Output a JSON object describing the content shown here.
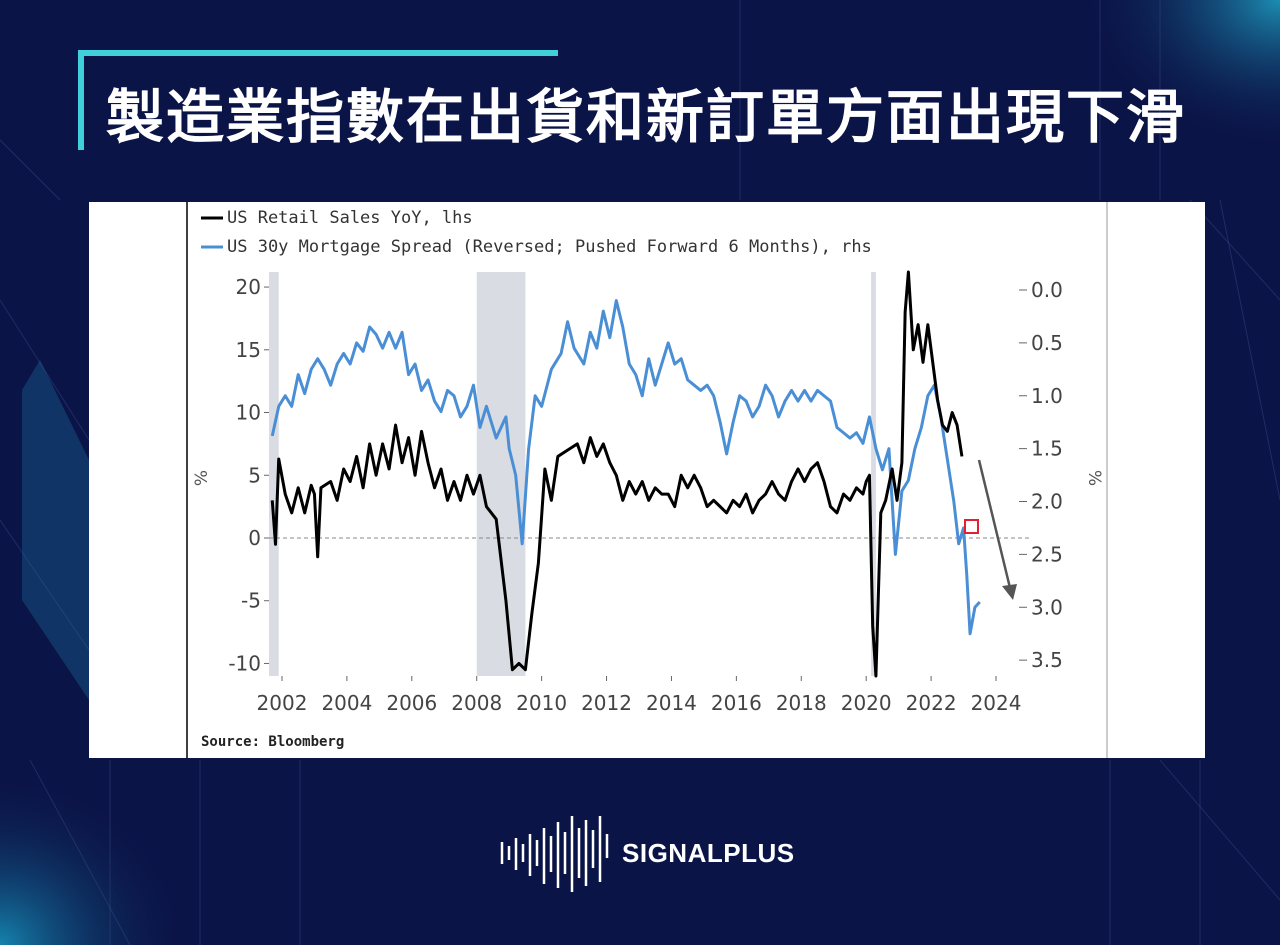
{
  "slide": {
    "title": "製造業指數在出貨和新訂單方面出現下滑",
    "brand": "SIGNALPLUS",
    "colors": {
      "background": "#0b1447",
      "accent": "#3fd0dc"
    }
  },
  "chart_data": {
    "type": "line",
    "legend": [
      {
        "label": "US Retail Sales YoY, lhs",
        "color": "#000000"
      },
      {
        "label": "US 30y Mortgage Spread (Reversed; Pushed Forward 6 Months), rhs",
        "color": "#4a8fd6"
      }
    ],
    "source": "Source: Bloomberg",
    "ylabel_left": "%",
    "ylabel_right": "%",
    "x_ticks": [
      "2002",
      "2004",
      "2006",
      "2008",
      "2010",
      "2012",
      "2014",
      "2016",
      "2018",
      "2020",
      "2022",
      "2024"
    ],
    "y_left_ticks": [
      "20",
      "15",
      "10",
      "5",
      "0",
      "-5",
      "-10"
    ],
    "y_right_ticks": [
      "0.0",
      "0.5",
      "1.0",
      "1.5",
      "2.0",
      "2.5",
      "3.0",
      "3.5"
    ],
    "xlim": [
      2001.6,
      2024.4
    ],
    "ylim_left": [
      -11,
      21.2
    ],
    "ylim_right_reversed": [
      0,
      3.65
    ],
    "zero_line": "dashed",
    "recession_shading": [
      [
        2008.0,
        2009.5
      ],
      [
        2001.6,
        2001.9
      ],
      [
        2020.15,
        2020.3
      ]
    ],
    "annotations": [
      "red square marker near 2023 on spread series",
      "gray arrow pointing downward"
    ],
    "series": [
      {
        "name": "US Retail Sales YoY",
        "axis": "left",
        "color": "#000000",
        "points": [
          [
            2001.7,
            3
          ],
          [
            2001.8,
            -0.5
          ],
          [
            2001.9,
            6.3
          ],
          [
            2002.1,
            3.5
          ],
          [
            2002.3,
            2
          ],
          [
            2002.5,
            4
          ],
          [
            2002.7,
            2
          ],
          [
            2002.9,
            4.2
          ],
          [
            2003.0,
            3.5
          ],
          [
            2003.1,
            -1.5
          ],
          [
            2003.2,
            4
          ],
          [
            2003.5,
            4.5
          ],
          [
            2003.7,
            3
          ],
          [
            2003.9,
            5.5
          ],
          [
            2004.1,
            4.5
          ],
          [
            2004.3,
            6.5
          ],
          [
            2004.5,
            4
          ],
          [
            2004.7,
            7.5
          ],
          [
            2004.9,
            5
          ],
          [
            2005.1,
            7.5
          ],
          [
            2005.3,
            5.5
          ],
          [
            2005.5,
            9
          ],
          [
            2005.7,
            6
          ],
          [
            2005.9,
            8
          ],
          [
            2006.1,
            5
          ],
          [
            2006.3,
            8.5
          ],
          [
            2006.5,
            6
          ],
          [
            2006.7,
            4
          ],
          [
            2006.9,
            5.5
          ],
          [
            2007.1,
            3
          ],
          [
            2007.3,
            4.5
          ],
          [
            2007.5,
            3
          ],
          [
            2007.7,
            5
          ],
          [
            2007.9,
            3.5
          ],
          [
            2008.1,
            5
          ],
          [
            2008.3,
            2.5
          ],
          [
            2008.6,
            1.5
          ],
          [
            2008.9,
            -5
          ],
          [
            2009.1,
            -10.5
          ],
          [
            2009.3,
            -10
          ],
          [
            2009.5,
            -10.5
          ],
          [
            2009.7,
            -6
          ],
          [
            2009.9,
            -2
          ],
          [
            2010.1,
            5.5
          ],
          [
            2010.3,
            3
          ],
          [
            2010.5,
            6.5
          ],
          [
            2010.8,
            7
          ],
          [
            2011.1,
            7.5
          ],
          [
            2011.3,
            6
          ],
          [
            2011.5,
            8
          ],
          [
            2011.7,
            6.5
          ],
          [
            2011.9,
            7.5
          ],
          [
            2012.1,
            6
          ],
          [
            2012.3,
            5
          ],
          [
            2012.5,
            3
          ],
          [
            2012.7,
            4.5
          ],
          [
            2012.9,
            3.5
          ],
          [
            2013.1,
            4.5
          ],
          [
            2013.3,
            3
          ],
          [
            2013.5,
            4
          ],
          [
            2013.7,
            3.5
          ],
          [
            2013.9,
            3.5
          ],
          [
            2014.1,
            2.5
          ],
          [
            2014.3,
            5
          ],
          [
            2014.5,
            4
          ],
          [
            2014.7,
            5
          ],
          [
            2014.9,
            4
          ],
          [
            2015.1,
            2.5
          ],
          [
            2015.3,
            3
          ],
          [
            2015.5,
            2.5
          ],
          [
            2015.7,
            2
          ],
          [
            2015.9,
            3
          ],
          [
            2016.1,
            2.5
          ],
          [
            2016.3,
            3.5
          ],
          [
            2016.5,
            2
          ],
          [
            2016.7,
            3
          ],
          [
            2016.9,
            3.5
          ],
          [
            2017.1,
            4.5
          ],
          [
            2017.3,
            3.5
          ],
          [
            2017.5,
            3
          ],
          [
            2017.7,
            4.5
          ],
          [
            2017.9,
            5.5
          ],
          [
            2018.1,
            4.5
          ],
          [
            2018.3,
            5.5
          ],
          [
            2018.5,
            6
          ],
          [
            2018.7,
            4.5
          ],
          [
            2018.9,
            2.5
          ],
          [
            2019.1,
            2
          ],
          [
            2019.3,
            3.5
          ],
          [
            2019.5,
            3
          ],
          [
            2019.7,
            4
          ],
          [
            2019.9,
            3.5
          ],
          [
            2020.0,
            4.5
          ],
          [
            2020.1,
            5
          ],
          [
            2020.2,
            -7
          ],
          [
            2020.3,
            -11
          ],
          [
            2020.45,
            2
          ],
          [
            2020.6,
            3
          ],
          [
            2020.8,
            5.5
          ],
          [
            2020.95,
            3
          ],
          [
            2021.1,
            6
          ],
          [
            2021.2,
            18
          ],
          [
            2021.3,
            23
          ],
          [
            2021.45,
            15
          ],
          [
            2021.6,
            17
          ],
          [
            2021.75,
            14
          ],
          [
            2021.9,
            17
          ],
          [
            2022.05,
            14
          ],
          [
            2022.2,
            11
          ],
          [
            2022.35,
            9
          ],
          [
            2022.5,
            8.5
          ],
          [
            2022.65,
            10
          ],
          [
            2022.8,
            9
          ],
          [
            2022.95,
            6.5
          ]
        ]
      },
      {
        "name": "US 30y Mortgage Spread (Reversed; Pushed Forward 6 Months)",
        "axis": "right",
        "color": "#4a8fd6",
        "points": [
          [
            2001.7,
            1.38
          ],
          [
            2001.9,
            1.1
          ],
          [
            2002.1,
            1.0
          ],
          [
            2002.3,
            1.1
          ],
          [
            2002.5,
            0.8
          ],
          [
            2002.7,
            0.98
          ],
          [
            2002.9,
            0.75
          ],
          [
            2003.1,
            0.65
          ],
          [
            2003.3,
            0.75
          ],
          [
            2003.5,
            0.9
          ],
          [
            2003.7,
            0.7
          ],
          [
            2003.9,
            0.6
          ],
          [
            2004.1,
            0.7
          ],
          [
            2004.3,
            0.5
          ],
          [
            2004.5,
            0.58
          ],
          [
            2004.7,
            0.35
          ],
          [
            2004.9,
            0.42
          ],
          [
            2005.1,
            0.55
          ],
          [
            2005.3,
            0.4
          ],
          [
            2005.5,
            0.55
          ],
          [
            2005.7,
            0.4
          ],
          [
            2005.9,
            0.8
          ],
          [
            2006.1,
            0.7
          ],
          [
            2006.3,
            0.95
          ],
          [
            2006.5,
            0.85
          ],
          [
            2006.7,
            1.05
          ],
          [
            2006.9,
            1.15
          ],
          [
            2007.1,
            0.95
          ],
          [
            2007.3,
            1.0
          ],
          [
            2007.5,
            1.2
          ],
          [
            2007.7,
            1.1
          ],
          [
            2007.9,
            0.9
          ],
          [
            2008.1,
            1.3
          ],
          [
            2008.3,
            1.1
          ],
          [
            2008.6,
            1.4
          ],
          [
            2008.9,
            1.2
          ],
          [
            2009.0,
            1.5
          ],
          [
            2009.2,
            1.75
          ],
          [
            2009.4,
            2.4
          ],
          [
            2009.6,
            1.5
          ],
          [
            2009.8,
            1.0
          ],
          [
            2010.0,
            1.1
          ],
          [
            2010.3,
            0.75
          ],
          [
            2010.6,
            0.6
          ],
          [
            2010.8,
            0.3
          ],
          [
            2011.0,
            0.55
          ],
          [
            2011.3,
            0.7
          ],
          [
            2011.5,
            0.4
          ],
          [
            2011.7,
            0.55
          ],
          [
            2011.9,
            0.2
          ],
          [
            2012.1,
            0.45
          ],
          [
            2012.3,
            0.1
          ],
          [
            2012.5,
            0.35
          ],
          [
            2012.7,
            0.7
          ],
          [
            2012.9,
            0.8
          ],
          [
            2013.1,
            1.0
          ],
          [
            2013.3,
            0.65
          ],
          [
            2013.5,
            0.9
          ],
          [
            2013.7,
            0.7
          ],
          [
            2013.9,
            0.5
          ],
          [
            2014.1,
            0.7
          ],
          [
            2014.3,
            0.65
          ],
          [
            2014.5,
            0.85
          ],
          [
            2014.7,
            0.9
          ],
          [
            2014.9,
            0.95
          ],
          [
            2015.1,
            0.9
          ],
          [
            2015.3,
            1.0
          ],
          [
            2015.5,
            1.25
          ],
          [
            2015.7,
            1.55
          ],
          [
            2015.9,
            1.25
          ],
          [
            2016.1,
            1.0
          ],
          [
            2016.3,
            1.05
          ],
          [
            2016.5,
            1.2
          ],
          [
            2016.7,
            1.1
          ],
          [
            2016.9,
            0.9
          ],
          [
            2017.1,
            1.0
          ],
          [
            2017.3,
            1.2
          ],
          [
            2017.5,
            1.05
          ],
          [
            2017.7,
            0.95
          ],
          [
            2017.9,
            1.05
          ],
          [
            2018.1,
            0.95
          ],
          [
            2018.3,
            1.05
          ],
          [
            2018.5,
            0.95
          ],
          [
            2018.7,
            1.0
          ],
          [
            2018.9,
            1.05
          ],
          [
            2019.1,
            1.3
          ],
          [
            2019.3,
            1.35
          ],
          [
            2019.5,
            1.4
          ],
          [
            2019.7,
            1.35
          ],
          [
            2019.9,
            1.45
          ],
          [
            2020.1,
            1.2
          ],
          [
            2020.3,
            1.5
          ],
          [
            2020.5,
            1.7
          ],
          [
            2020.7,
            1.5
          ],
          [
            2020.9,
            2.5
          ],
          [
            2021.1,
            1.9
          ],
          [
            2021.3,
            1.8
          ],
          [
            2021.5,
            1.5
          ],
          [
            2021.7,
            1.3
          ],
          [
            2021.9,
            1.0
          ],
          [
            2022.1,
            0.9
          ],
          [
            2022.3,
            1.2
          ],
          [
            2022.5,
            1.6
          ],
          [
            2022.7,
            2.0
          ],
          [
            2022.85,
            2.4
          ],
          [
            2023.0,
            2.25
          ],
          [
            2023.1,
            2.7
          ],
          [
            2023.2,
            3.25
          ],
          [
            2023.35,
            3.0
          ],
          [
            2023.5,
            2.95
          ]
        ]
      }
    ]
  }
}
